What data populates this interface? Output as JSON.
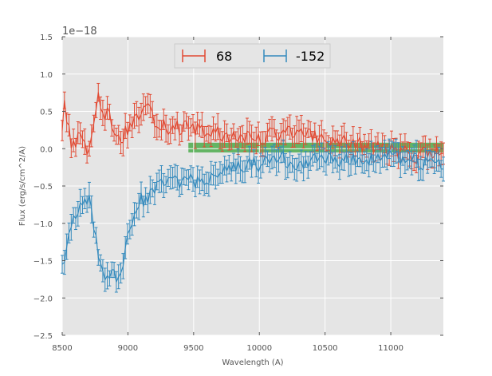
{
  "chart_data": {
    "type": "line",
    "title": "",
    "xlabel": "Wavelength (A)",
    "ylabel": "Flux (erg/s/cm^2/A)",
    "y_offset_text": "1e−18",
    "xlim": [
      8500,
      11400
    ],
    "ylim": [
      -2.5,
      1.5
    ],
    "x_ticks": [
      8500,
      9000,
      9500,
      10000,
      10500,
      11000
    ],
    "x_tick_labels": [
      "8500",
      "9000",
      "9500",
      "10000",
      "10500",
      "11000"
    ],
    "y_ticks": [
      -2.5,
      -2.0,
      -1.5,
      -1.0,
      -0.5,
      0.0,
      0.5,
      1.0,
      1.5
    ],
    "y_tick_labels": [
      "−2.5",
      "−2.0",
      "−1.5",
      "−1.0",
      "−0.5",
      "0.0",
      "0.5",
      "1.0",
      "1.5"
    ],
    "grid": true,
    "legend_location": "top-center",
    "band": {
      "x_start": 9460,
      "x_end": 11400,
      "y_low": -0.05,
      "y_high": 0.08,
      "color": "#2ca02c"
    },
    "series": [
      {
        "name": "68",
        "color": "#e24a33",
        "anchors_x": [
          8500,
          8520,
          8560,
          8600,
          8650,
          8700,
          8750,
          8780,
          8820,
          8850,
          8880,
          8900,
          8950,
          9000,
          9050,
          9100,
          9150,
          9200,
          9300,
          9400,
          9500,
          9600,
          9700,
          9750,
          9800,
          9900,
          10000,
          10100,
          10200,
          10300,
          10400,
          10500,
          10600,
          10700,
          10800,
          10900,
          11000,
          11100,
          11200,
          11300,
          11400
        ],
        "anchors_y": [
          0.3,
          0.65,
          0.1,
          0.05,
          0.2,
          -0.05,
          0.3,
          0.75,
          0.3,
          0.55,
          0.15,
          0.3,
          0.05,
          0.3,
          0.4,
          0.45,
          0.5,
          0.4,
          0.3,
          0.28,
          0.25,
          0.22,
          0.2,
          0.1,
          0.2,
          0.15,
          0.12,
          0.2,
          0.22,
          0.2,
          0.15,
          0.12,
          0.1,
          0.05,
          0.05,
          0.02,
          -0.02,
          -0.05,
          -0.1,
          -0.05,
          -0.05
        ],
        "error": 0.14,
        "n_points": 170
      },
      {
        "name": "-152",
        "color": "#348abd",
        "anchors_x": [
          8500,
          8530,
          8560,
          8600,
          8650,
          8700,
          8750,
          8800,
          8830,
          8870,
          8900,
          8950,
          9000,
          9050,
          9100,
          9150,
          9200,
          9300,
          9400,
          9450,
          9500,
          9600,
          9700,
          9800,
          9900,
          10000,
          10100,
          10200,
          10300,
          10400,
          10500,
          10600,
          10700,
          10800,
          10900,
          11000,
          11100,
          11200,
          11300,
          11400
        ],
        "anchors_y": [
          -1.5,
          -1.4,
          -1.1,
          -0.85,
          -0.7,
          -0.65,
          -1.2,
          -1.65,
          -1.85,
          -1.6,
          -1.7,
          -1.65,
          -1.15,
          -0.8,
          -0.7,
          -0.65,
          -0.55,
          -0.45,
          -0.45,
          -0.35,
          -0.45,
          -0.42,
          -0.32,
          -0.25,
          -0.2,
          -0.2,
          -0.1,
          -0.15,
          -0.2,
          -0.15,
          -0.15,
          -0.2,
          -0.15,
          -0.12,
          -0.1,
          -0.1,
          -0.15,
          -0.18,
          -0.22,
          -0.22
        ],
        "error": 0.14,
        "n_points": 170
      }
    ]
  }
}
